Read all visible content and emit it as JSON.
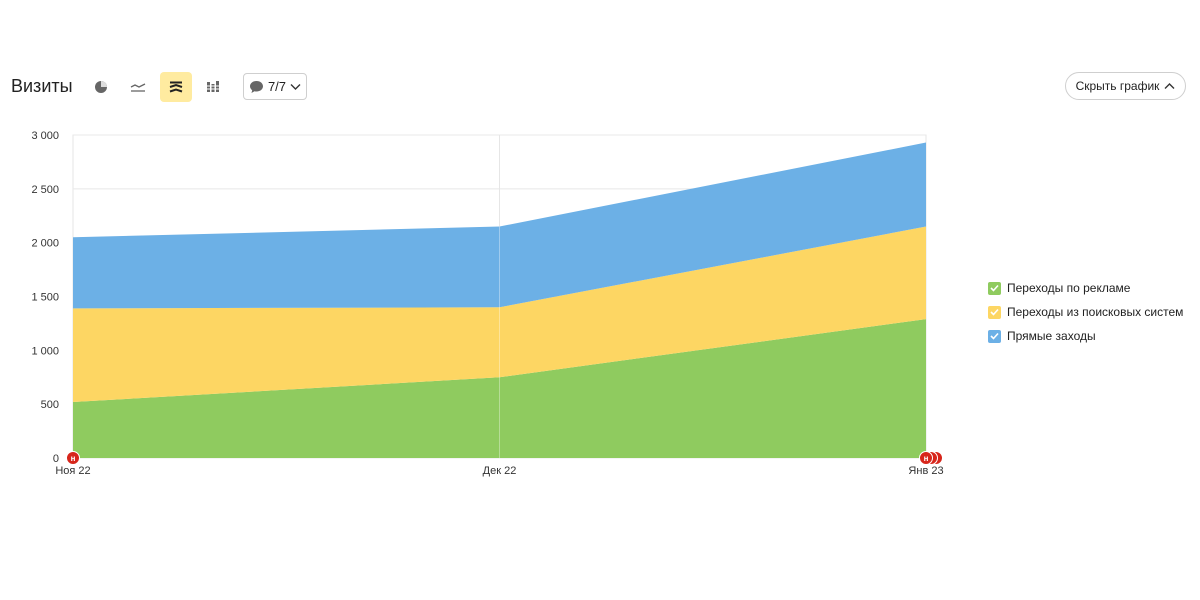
{
  "header": {
    "title": "Визиты",
    "annotations_count": "7/7",
    "hide_chart_label": "Скрыть график"
  },
  "toolbar_icons": [
    "pie-chart-icon",
    "line-chart-icon",
    "stacked-area-icon",
    "stacked-bar-icon"
  ],
  "colors": {
    "ads": "#8fcb5f",
    "search": "#fdd663",
    "direct": "#6cb0e6",
    "marker": "#d7261b",
    "active_tool": "#ffeba0"
  },
  "chart_data": {
    "type": "area",
    "stacked": true,
    "x": [
      "Ноя 22",
      "Дек 22",
      "Янв 23"
    ],
    "series": [
      {
        "name": "Переходы по рекламе",
        "values": [
          520,
          750,
          1290
        ]
      },
      {
        "name": "Переходы из поисковых систем",
        "values": [
          870,
          650,
          860
        ]
      },
      {
        "name": "Прямые заходы",
        "values": [
          660,
          750,
          780
        ]
      }
    ],
    "ylim": [
      0,
      3000
    ],
    "yticks": [
      0,
      500,
      1000,
      1500,
      2000,
      2500,
      3000
    ],
    "ytick_labels": [
      "0",
      "500",
      "1 000",
      "1 500",
      "2 000",
      "2 500",
      "3 000"
    ],
    "grid": true,
    "legend_position": "right",
    "markers": [
      {
        "x": "Ноя 22",
        "label": "н"
      },
      {
        "x": "Янв 23",
        "label": "н"
      }
    ]
  }
}
